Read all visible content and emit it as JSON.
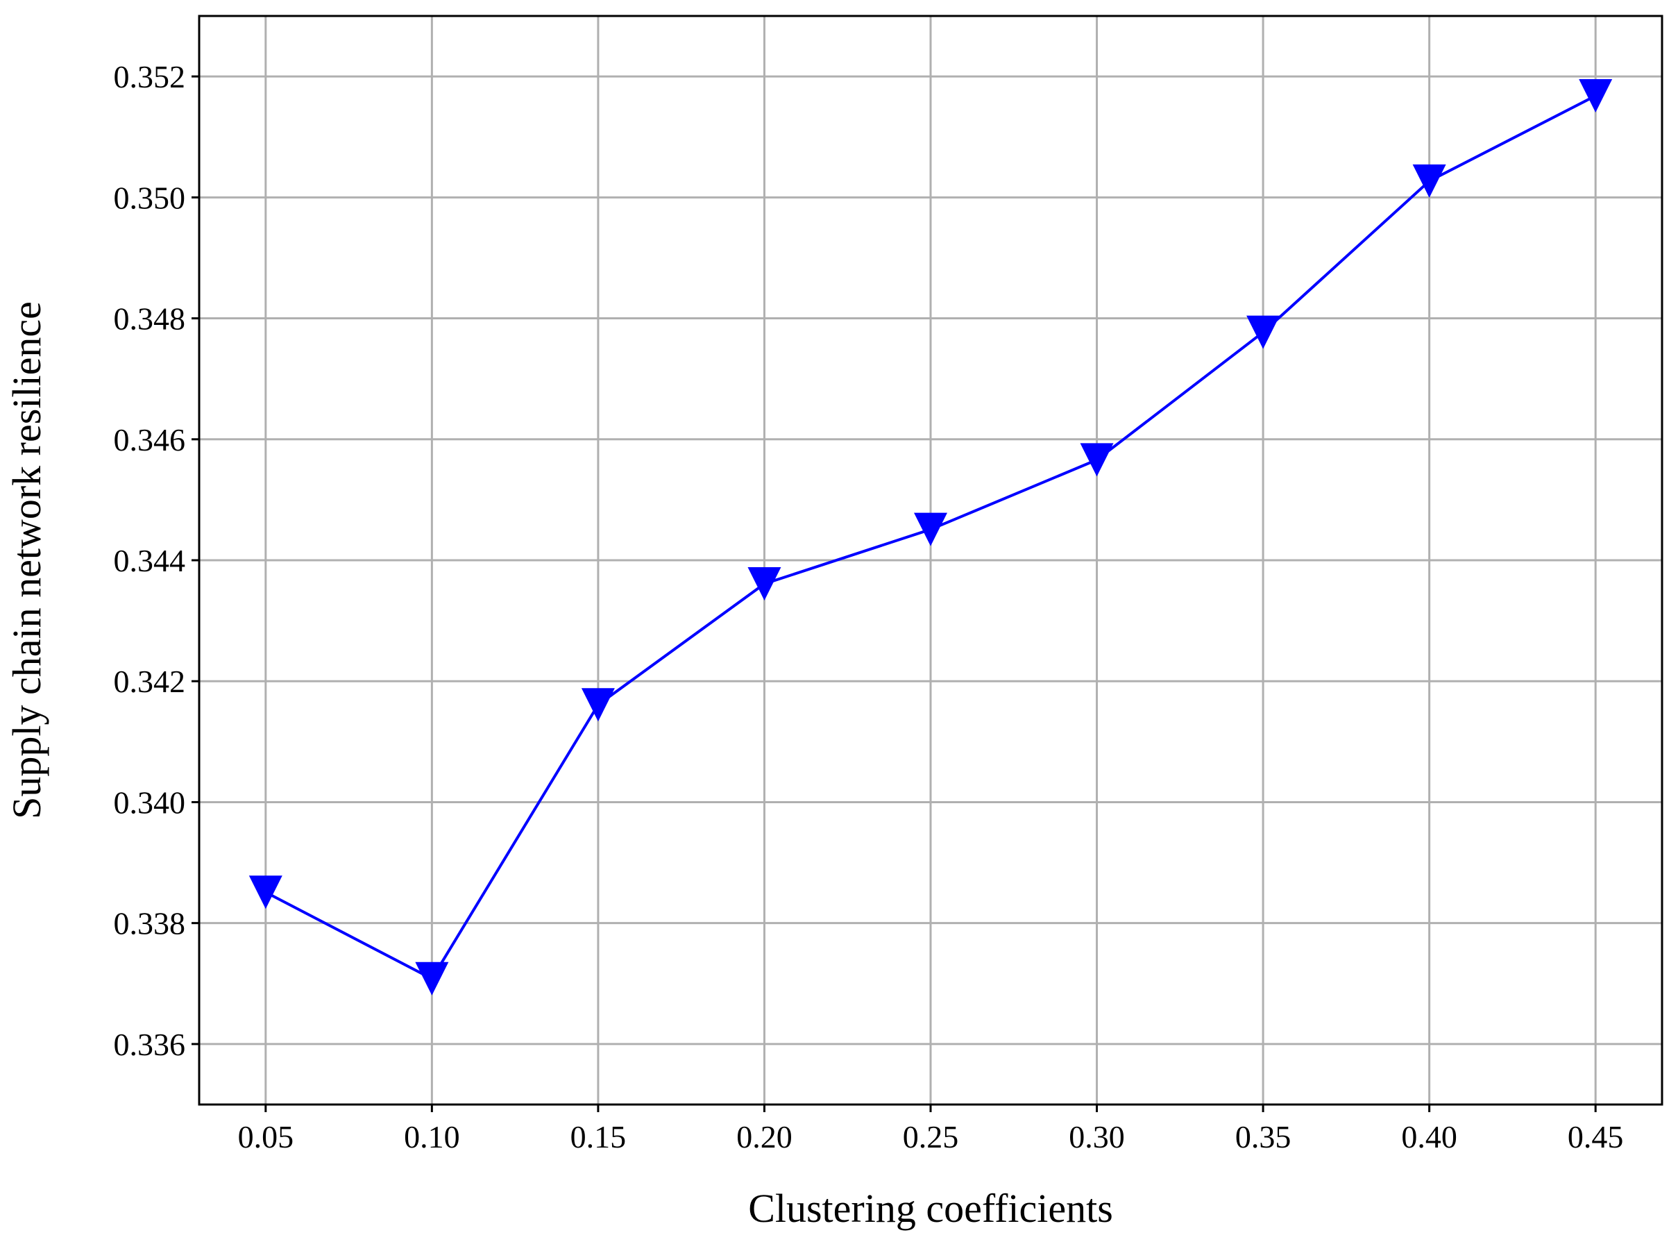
{
  "chart_data": {
    "type": "line",
    "x_label": "Clustering coefficients",
    "y_label": "Supply chain network resilience",
    "x": [
      0.05,
      0.1,
      0.15,
      0.2,
      0.25,
      0.3,
      0.35,
      0.4,
      0.45
    ],
    "series": [
      {
        "color": "#0000ff",
        "marker": "triangle-down",
        "values": [
          0.33851,
          0.33708,
          0.34161,
          0.34361,
          0.34451,
          0.34566,
          0.34777,
          0.35027,
          0.35168
        ]
      }
    ],
    "xlim": [
      0.03,
      0.47
    ],
    "ylim": [
      0.335,
      0.353
    ],
    "xticks": [
      0.05,
      {
        "value": 0.1,
        "label": "0.10"
      },
      0.15,
      {
        "value": 0.2,
        "label": "0.20"
      },
      0.25,
      {
        "value": 0.3,
        "label": "0.30"
      },
      0.35,
      {
        "value": 0.4,
        "label": "0.40"
      },
      0.45
    ],
    "yticks": [
      0.336,
      0.338,
      {
        "value": 0.34,
        "label": "0.340"
      },
      0.342,
      0.344,
      0.346,
      0.348,
      {
        "value": 0.35,
        "label": "0.350"
      },
      0.352
    ],
    "grid": true
  }
}
